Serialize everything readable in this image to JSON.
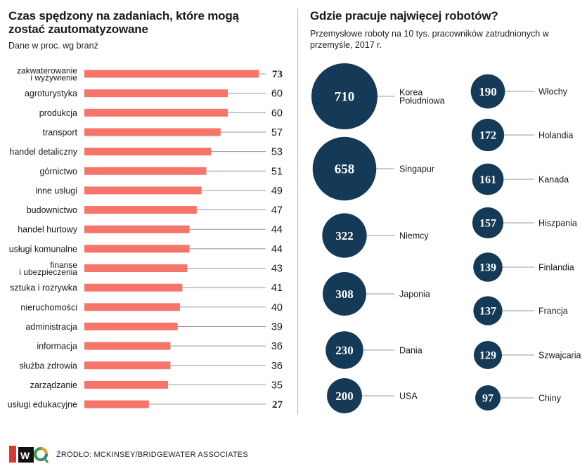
{
  "left": {
    "title": "Czas spędzony na zadaniach, które mogą zostać zautomatyzowane",
    "subtitle": "Dane w proc. wg branż"
  },
  "right": {
    "title": "Gdzie pracuje najwięcej robotów?",
    "subtitle": "Przemysłowe roboty na 10 tys. pracowników zatrudnionych w przemyśle, 2017 r."
  },
  "source": "ŹRÓDŁO: MCKINSEY/BRIDGEWATER ASSOCIATES",
  "colors": {
    "bar": "#f5756b",
    "bubble": "#143a57",
    "line": "#999999"
  },
  "chart_data": [
    {
      "type": "bar",
      "orientation": "horizontal",
      "categories": [
        [
          "zakwaterowanie",
          "i wyżywienie"
        ],
        [
          "agroturystyka"
        ],
        [
          "produkcja"
        ],
        [
          "transport"
        ],
        [
          "handel detaliczny"
        ],
        [
          "górnictwo"
        ],
        [
          "inne usługi"
        ],
        [
          "budownictwo"
        ],
        [
          "handel hurtowy"
        ],
        [
          "usługi komunalne"
        ],
        [
          "finanse",
          "i ubezpieczenia"
        ],
        [
          "sztuka i rozrywka"
        ],
        [
          "nieruchomości"
        ],
        [
          "administracja"
        ],
        [
          "informacja"
        ],
        [
          "służba zdrowia"
        ],
        [
          "zarządzanie"
        ],
        [
          "usługi edukacyjne"
        ]
      ],
      "values": [
        73,
        60,
        60,
        57,
        53,
        51,
        49,
        47,
        44,
        44,
        43,
        41,
        40,
        39,
        36,
        36,
        35,
        27
      ],
      "highlighted": [
        0,
        17
      ]
    },
    {
      "type": "scatter",
      "subtype": "bubble",
      "points": [
        {
          "label": [
            "Korea",
            "Południowa"
          ],
          "value": 710
        },
        {
          "label": [
            "Singapur"
          ],
          "value": 658
        },
        {
          "label": [
            "Niemcy"
          ],
          "value": 322
        },
        {
          "label": [
            "Japonia"
          ],
          "value": 308
        },
        {
          "label": [
            "Dania"
          ],
          "value": 230
        },
        {
          "label": [
            "USA"
          ],
          "value": 200
        },
        {
          "label": [
            "Włochy"
          ],
          "value": 190
        },
        {
          "label": [
            "Holandia"
          ],
          "value": 172
        },
        {
          "label": [
            "Kanada"
          ],
          "value": 161
        },
        {
          "label": [
            "Hiszpania"
          ],
          "value": 157
        },
        {
          "label": [
            "Finlandia"
          ],
          "value": 139
        },
        {
          "label": [
            "Francja"
          ],
          "value": 137
        },
        {
          "label": [
            "Szwajcaria"
          ],
          "value": 129
        },
        {
          "label": [
            "Chiny"
          ],
          "value": 97
        }
      ]
    }
  ]
}
